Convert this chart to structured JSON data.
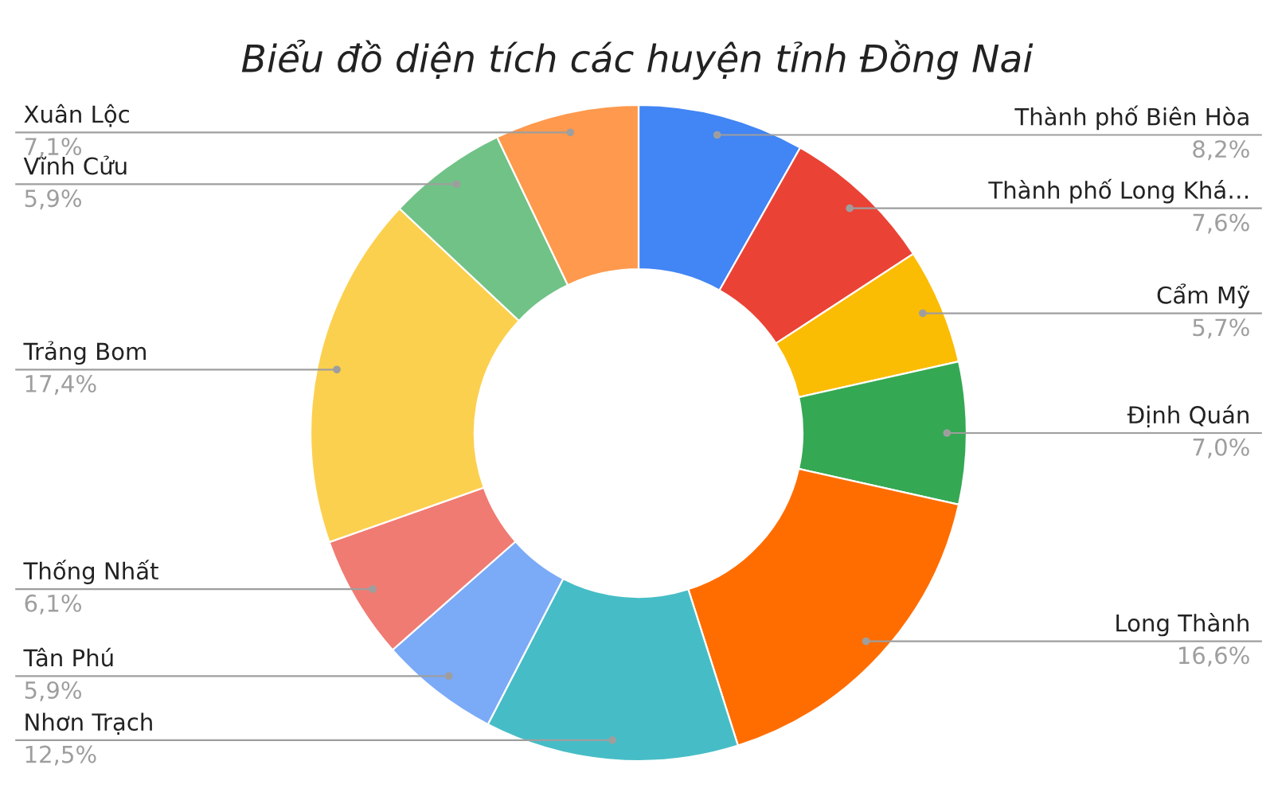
{
  "chart_data": {
    "type": "donut",
    "title": "Biểu đồ diện tích các huyện tỉnh Đồng Nai",
    "categories": [
      "Thành phố Biên Hòa",
      "Thành phố Long Khá…",
      "Cẩm Mỹ",
      "Định Quán",
      "Long Thành",
      "Nhơn Trạch",
      "Tân Phú",
      "Thống Nhất",
      "Trảng Bom",
      "Vĩnh Cửu",
      "Xuân Lộc"
    ],
    "values": [
      8.2,
      7.6,
      5.7,
      7.0,
      16.6,
      12.5,
      5.9,
      6.1,
      17.4,
      5.9,
      7.1
    ],
    "value_labels": [
      "8,2%",
      "7,6%",
      "5,7%",
      "7,0%",
      "16,6%",
      "12,5%",
      "5,9%",
      "6,1%",
      "17,4%",
      "5,9%",
      "7,1%"
    ],
    "colors": [
      "#4285f4",
      "#ea4335",
      "#fbbc04",
      "#34a853",
      "#ff6d01",
      "#46bdc6",
      "#7baaf7",
      "#f07b72",
      "#fcd04f",
      "#71c287",
      "#ff994d"
    ]
  }
}
